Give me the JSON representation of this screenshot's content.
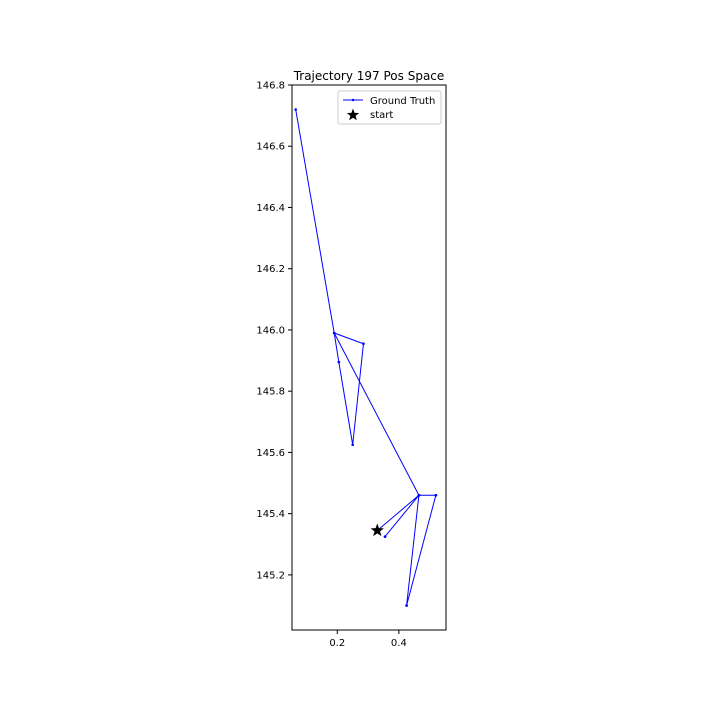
{
  "chart_data": {
    "type": "line",
    "title": "Trajectory 197 Pos Space",
    "xlabel": "",
    "ylabel": "",
    "xlim": [
      0.053,
      0.553
    ],
    "ylim": [
      145.02,
      146.8
    ],
    "xticks": [
      0.2,
      0.4
    ],
    "xtick_labels": [
      "0.2",
      "0.4"
    ],
    "yticks": [
      145.2,
      145.4,
      145.6,
      145.8,
      146.0,
      146.2,
      146.4,
      146.6,
      146.8
    ],
    "ytick_labels": [
      "145.2",
      "145.4",
      "145.6",
      "145.8",
      "146.0",
      "146.2",
      "146.4",
      "146.6",
      "146.8"
    ],
    "grid": false,
    "legend_position": "top-right",
    "colors": {
      "ground_truth": "#0000ff",
      "start": "#000000"
    },
    "series": [
      {
        "name": "Ground Truth",
        "marker": "point",
        "x": [
          0.33,
          0.465,
          0.355,
          0.465,
          0.52,
          0.465,
          0.425,
          0.465,
          0.52,
          0.425,
          0.465,
          0.19,
          0.465,
          0.52,
          0.465,
          0.355,
          0.465,
          0.19,
          0.285,
          0.25,
          0.205,
          0.19,
          0.065
        ],
        "y": [
          145.345,
          145.46,
          145.325,
          145.46,
          145.46,
          145.46,
          145.1,
          145.46,
          145.46,
          145.1,
          145.46,
          145.99,
          145.46,
          145.46,
          145.46,
          145.325,
          145.46,
          145.99,
          145.955,
          145.625,
          145.895,
          145.99,
          146.72
        ]
      }
    ],
    "start": {
      "label": "start",
      "marker": "star",
      "x": 0.33,
      "y": 145.345
    }
  }
}
